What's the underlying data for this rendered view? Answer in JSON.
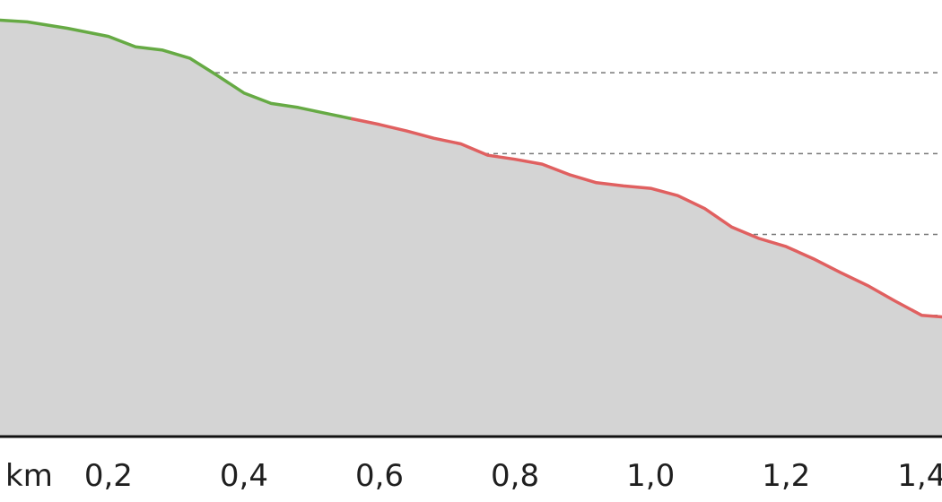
{
  "chart_data": {
    "type": "area",
    "x_unit_label": "km",
    "x_tick_labels": [
      "0,2",
      "0,4",
      "0,6",
      "0,8",
      "1,0",
      "1,2",
      "1,4"
    ],
    "x_ticks": [
      0.2,
      0.4,
      0.6,
      0.8,
      1.0,
      1.2,
      1.4
    ],
    "xlim": [
      0.04,
      1.43
    ],
    "ylim": [
      0,
      5.4
    ],
    "y_gridlines": [
      0.5,
      1.5,
      2.5,
      3.5,
      4.5,
      5.5
    ],
    "grid": true,
    "series": [
      {
        "color": "#66aa44",
        "x": [
          0.04,
          0.08,
          0.14,
          0.2,
          0.24,
          0.28,
          0.32,
          0.36,
          0.4,
          0.44,
          0.48,
          0.52,
          0.56
        ],
        "values": [
          5.15,
          5.13,
          5.05,
          4.95,
          4.82,
          4.78,
          4.68,
          4.47,
          4.25,
          4.12,
          4.07,
          4.0,
          3.93
        ]
      },
      {
        "color": "#e06060",
        "x": [
          0.56,
          0.6,
          0.64,
          0.68,
          0.72,
          0.76,
          0.8,
          0.84,
          0.88,
          0.92,
          0.96,
          1.0,
          1.04,
          1.08,
          1.12,
          1.16,
          1.2,
          1.24,
          1.28,
          1.32,
          1.36,
          1.4,
          1.43
        ],
        "values": [
          3.93,
          3.86,
          3.78,
          3.69,
          3.62,
          3.48,
          3.43,
          3.37,
          3.24,
          3.14,
          3.1,
          3.07,
          2.98,
          2.82,
          2.59,
          2.45,
          2.35,
          2.2,
          2.03,
          1.87,
          1.68,
          1.5,
          1.48
        ]
      }
    ],
    "area_fill": "#d4d4d4",
    "baseline_color": "#111111",
    "grid_color": "#777777"
  }
}
